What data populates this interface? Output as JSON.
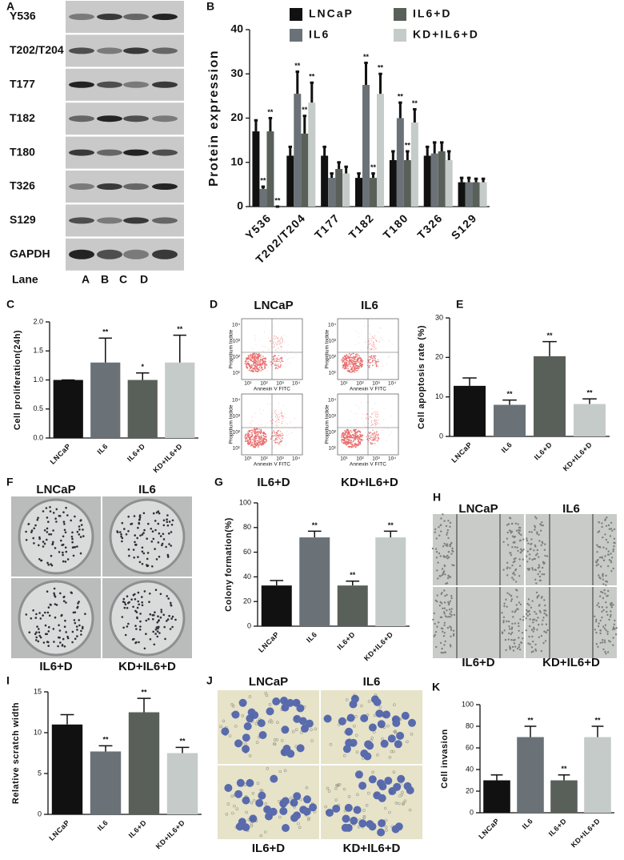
{
  "blot": {
    "label": "A",
    "rows": [
      "Y536",
      "T202/T204",
      "T177",
      "T182",
      "T180",
      "T326",
      "S129",
      "GAPDH"
    ],
    "lane_title": "Lane",
    "lanes": [
      "A",
      "B",
      "C",
      "D"
    ]
  },
  "flow": {
    "label": "D",
    "titles": [
      "LNCaP",
      "IL6",
      "IL6+D",
      "KD+IL6+D"
    ],
    "ylabel": "Propidium Iodide",
    "xlabel": "Annexin V FITC",
    "ticks": [
      "10¹",
      "10²",
      "10³",
      "10⁴"
    ]
  },
  "colony_images": {
    "label": "F",
    "titles": [
      "LNCaP",
      "IL6",
      "IL6+D",
      "KD+IL6+D"
    ]
  },
  "scratch_images": {
    "label": "H",
    "titles": [
      "LNCaP",
      "IL6",
      "IL6+D",
      "KD+IL6+D"
    ]
  },
  "invasion_images": {
    "label": "J",
    "titles": [
      "LNCaP",
      "IL6",
      "IL6+D",
      "KD+IL6+D"
    ]
  },
  "chart_data": [
    {
      "type": "bar",
      "label": "B",
      "ylabel": "Protein expression",
      "categories": [
        "Y536",
        "T202/T204",
        "T177",
        "T182",
        "T180",
        "T326",
        "S129"
      ],
      "series": [
        {
          "name": "LNCaP",
          "color": "#111111",
          "values": [
            17,
            11.5,
            11.5,
            6.5,
            10.5,
            11.5,
            5.5
          ],
          "errors": [
            2.5,
            2,
            2,
            1,
            2,
            2,
            1
          ],
          "annotations": [
            null,
            null,
            null,
            null,
            null,
            null,
            null
          ]
        },
        {
          "name": "IL6",
          "color": "#6b7277",
          "values": [
            4,
            25.5,
            6.5,
            27.5,
            20,
            12,
            5.5
          ],
          "errors": [
            0.5,
            5,
            1,
            5,
            3.5,
            2.5,
            1
          ],
          "annotations": [
            "**",
            "**",
            null,
            "**",
            "**",
            null,
            null
          ]
        },
        {
          "name": "IL6+D",
          "color": "#596059",
          "values": [
            17,
            16.5,
            8.5,
            6.5,
            10.5,
            12.5,
            5.5
          ],
          "errors": [
            3,
            4,
            1.5,
            1,
            2,
            2,
            0.8
          ],
          "annotations": [
            "**",
            "**",
            null,
            "**",
            "**",
            null,
            null
          ]
        },
        {
          "name": "KD+IL6+D",
          "color": "#c5cbc8",
          "values": [
            0,
            23.5,
            7.5,
            25.5,
            19,
            10.5,
            5.5
          ],
          "errors": [
            0,
            4.5,
            1.5,
            4.5,
            3,
            2,
            0.8
          ],
          "annotations": [
            "**",
            "**",
            null,
            "**",
            "**",
            null,
            null
          ]
        }
      ],
      "ylim": [
        0,
        40
      ],
      "yticks": [
        0,
        10,
        20,
        30,
        40
      ],
      "legend": "top"
    },
    {
      "type": "bar",
      "label": "C",
      "ylabel": "Cell proliferation(24h)",
      "categories": [
        "LNCaP",
        "IL6",
        "IL6+D",
        "KD+IL6+D"
      ],
      "values": [
        1.0,
        1.3,
        1.0,
        1.3
      ],
      "errors": [
        0,
        0.42,
        0.12,
        0.47
      ],
      "annotations": [
        null,
        "**",
        "*",
        "**"
      ],
      "colors": [
        "#111111",
        "#6b7277",
        "#596059",
        "#c5cbc8"
      ],
      "ylim": [
        0,
        2
      ],
      "yticks": [
        {
          "value": 0,
          "label": "0.0"
        },
        {
          "value": 0.5,
          "label": "0.5"
        },
        {
          "value": 1,
          "label": "1.0"
        },
        {
          "value": 1.5,
          "label": "1.5"
        },
        {
          "value": 2,
          "label": "2.0"
        }
      ]
    },
    {
      "type": "bar",
      "label": "E",
      "ylabel": "Cell apoptosis rate (%)",
      "categories": [
        "LNCaP",
        "IL6",
        "IL6+D",
        "KD+IL6+D"
      ],
      "values": [
        12.8,
        8,
        20.3,
        8.2
      ],
      "errors": [
        2,
        1.2,
        3.7,
        1.3
      ],
      "annotations": [
        null,
        "**",
        "**",
        "**"
      ],
      "colors": [
        "#111111",
        "#6b7277",
        "#596059",
        "#c5cbc8"
      ],
      "ylim": [
        0,
        30
      ],
      "yticks": [
        0,
        10,
        20,
        30
      ]
    },
    {
      "type": "bar",
      "label": "G",
      "ylabel": "Colony formation(%)",
      "categories": [
        "LNCaP",
        "IL6",
        "IL6+D",
        "KD+IL6+D"
      ],
      "values": [
        33,
        72,
        33,
        72
      ],
      "errors": [
        4,
        5,
        3.5,
        5
      ],
      "annotations": [
        null,
        "**",
        "**",
        "**"
      ],
      "colors": [
        "#111111",
        "#6b7277",
        "#596059",
        "#c5cbc8"
      ],
      "ylim": [
        0,
        100
      ],
      "yticks": [
        0,
        20,
        40,
        60,
        80,
        100
      ]
    },
    {
      "type": "bar",
      "label": "I",
      "ylabel": "Relative scratch width",
      "categories": [
        "LNCaP",
        "IL6",
        "IL6+D",
        "KD+IL6+D"
      ],
      "values": [
        11,
        7.7,
        12.5,
        7.5
      ],
      "errors": [
        1.2,
        0.7,
        1.7,
        0.7
      ],
      "annotations": [
        null,
        "**",
        "**",
        "**"
      ],
      "colors": [
        "#111111",
        "#6b7277",
        "#596059",
        "#c5cbc8"
      ],
      "ylim": [
        0,
        15
      ],
      "yticks": [
        0,
        5,
        10,
        15
      ]
    },
    {
      "type": "bar",
      "label": "K",
      "ylabel": "Cell invasion",
      "categories": [
        "LNCaP",
        "IL6",
        "IL6+D",
        "KD+IL6+D"
      ],
      "values": [
        30,
        70,
        30,
        70
      ],
      "errors": [
        5,
        10,
        5,
        10
      ],
      "annotations": [
        null,
        "**",
        "**",
        "**"
      ],
      "colors": [
        "#111111",
        "#6b7277",
        "#596059",
        "#c5cbc8"
      ],
      "ylim": [
        0,
        100
      ],
      "yticks": [
        0,
        20,
        40,
        60,
        80,
        100
      ]
    }
  ]
}
